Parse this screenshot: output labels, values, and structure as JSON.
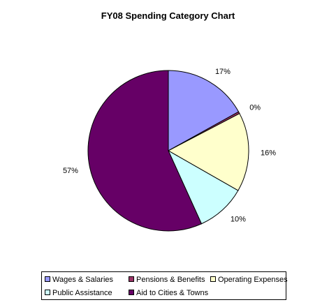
{
  "chart_data": {
    "type": "pie",
    "title": "FY08 Spending Category Chart",
    "series": [
      {
        "name": "Wages & Salaries",
        "value": 17,
        "label": "17%",
        "color": "#9999ff"
      },
      {
        "name": "Pensions & Benefits",
        "value": 0.4,
        "label": "0%",
        "color": "#993366"
      },
      {
        "name": "Operating Expenses",
        "value": 16,
        "label": "16%",
        "color": "#ffffcc"
      },
      {
        "name": "Public Assistance",
        "value": 10,
        "label": "10%",
        "color": "#ccffff"
      },
      {
        "name": "Aid to Cities & Towns",
        "value": 57,
        "label": "57%",
        "color": "#660066"
      }
    ],
    "legend_placement": "bottom"
  }
}
